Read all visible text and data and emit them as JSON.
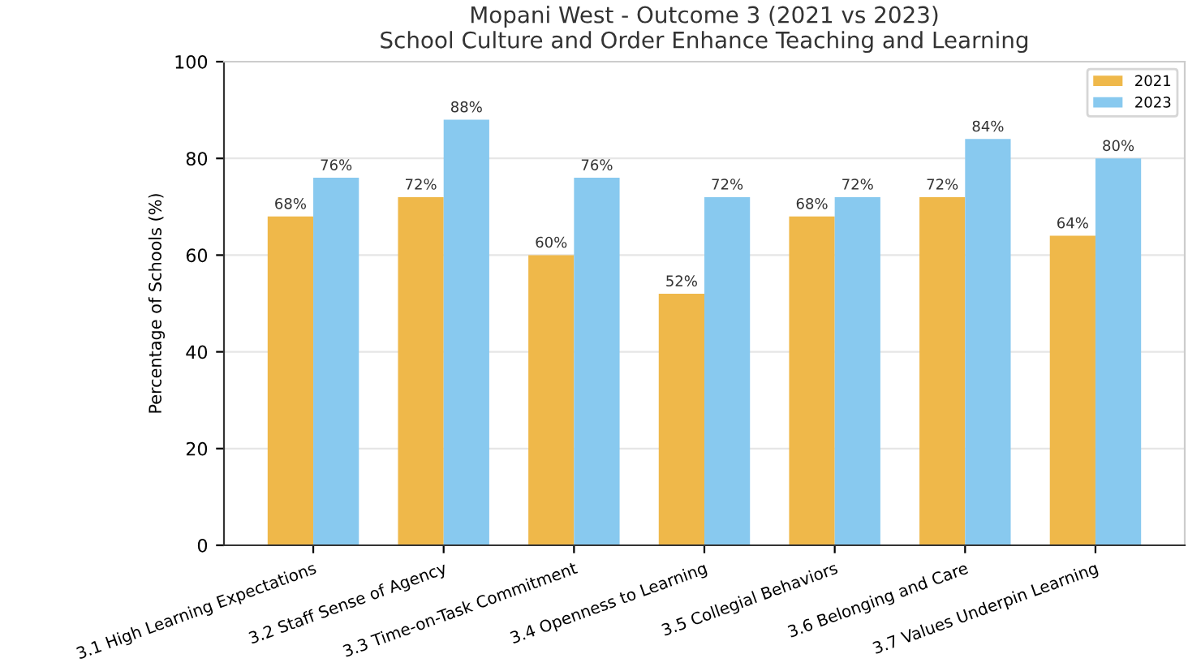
{
  "chart_data": {
    "type": "bar",
    "title": "Mopani West - Outcome 3 (2021 vs 2023)",
    "subtitle": "School Culture and Order Enhance Teaching and Learning",
    "ylabel": "Percentage of Schools (%)",
    "categories": [
      "3.1 High Learning Expectations",
      "3.2 Staff Sense of Agency",
      "3.3 Time-on-Task Commitment",
      "3.4 Openness to Learning",
      "3.5 Collegial Behaviors",
      "3.6 Belonging and Care",
      "3.7 Values Underpin Learning"
    ],
    "series": [
      {
        "name": "2021",
        "color": "#efb84a",
        "values": [
          68,
          72,
          60,
          52,
          68,
          72,
          64
        ],
        "value_labels": [
          "68%",
          "72%",
          "60%",
          "52%",
          "68%",
          "72%",
          "64%"
        ]
      },
      {
        "name": "2023",
        "color": "#88c9ef",
        "values": [
          76,
          88,
          76,
          72,
          72,
          84,
          80
        ],
        "value_labels": [
          "76%",
          "88%",
          "76%",
          "72%",
          "72%",
          "84%",
          "80%"
        ]
      }
    ],
    "ylim": [
      0,
      100
    ],
    "yticks": [
      0,
      20,
      40,
      60,
      80,
      100
    ],
    "grid": "y",
    "legend": "top right"
  }
}
